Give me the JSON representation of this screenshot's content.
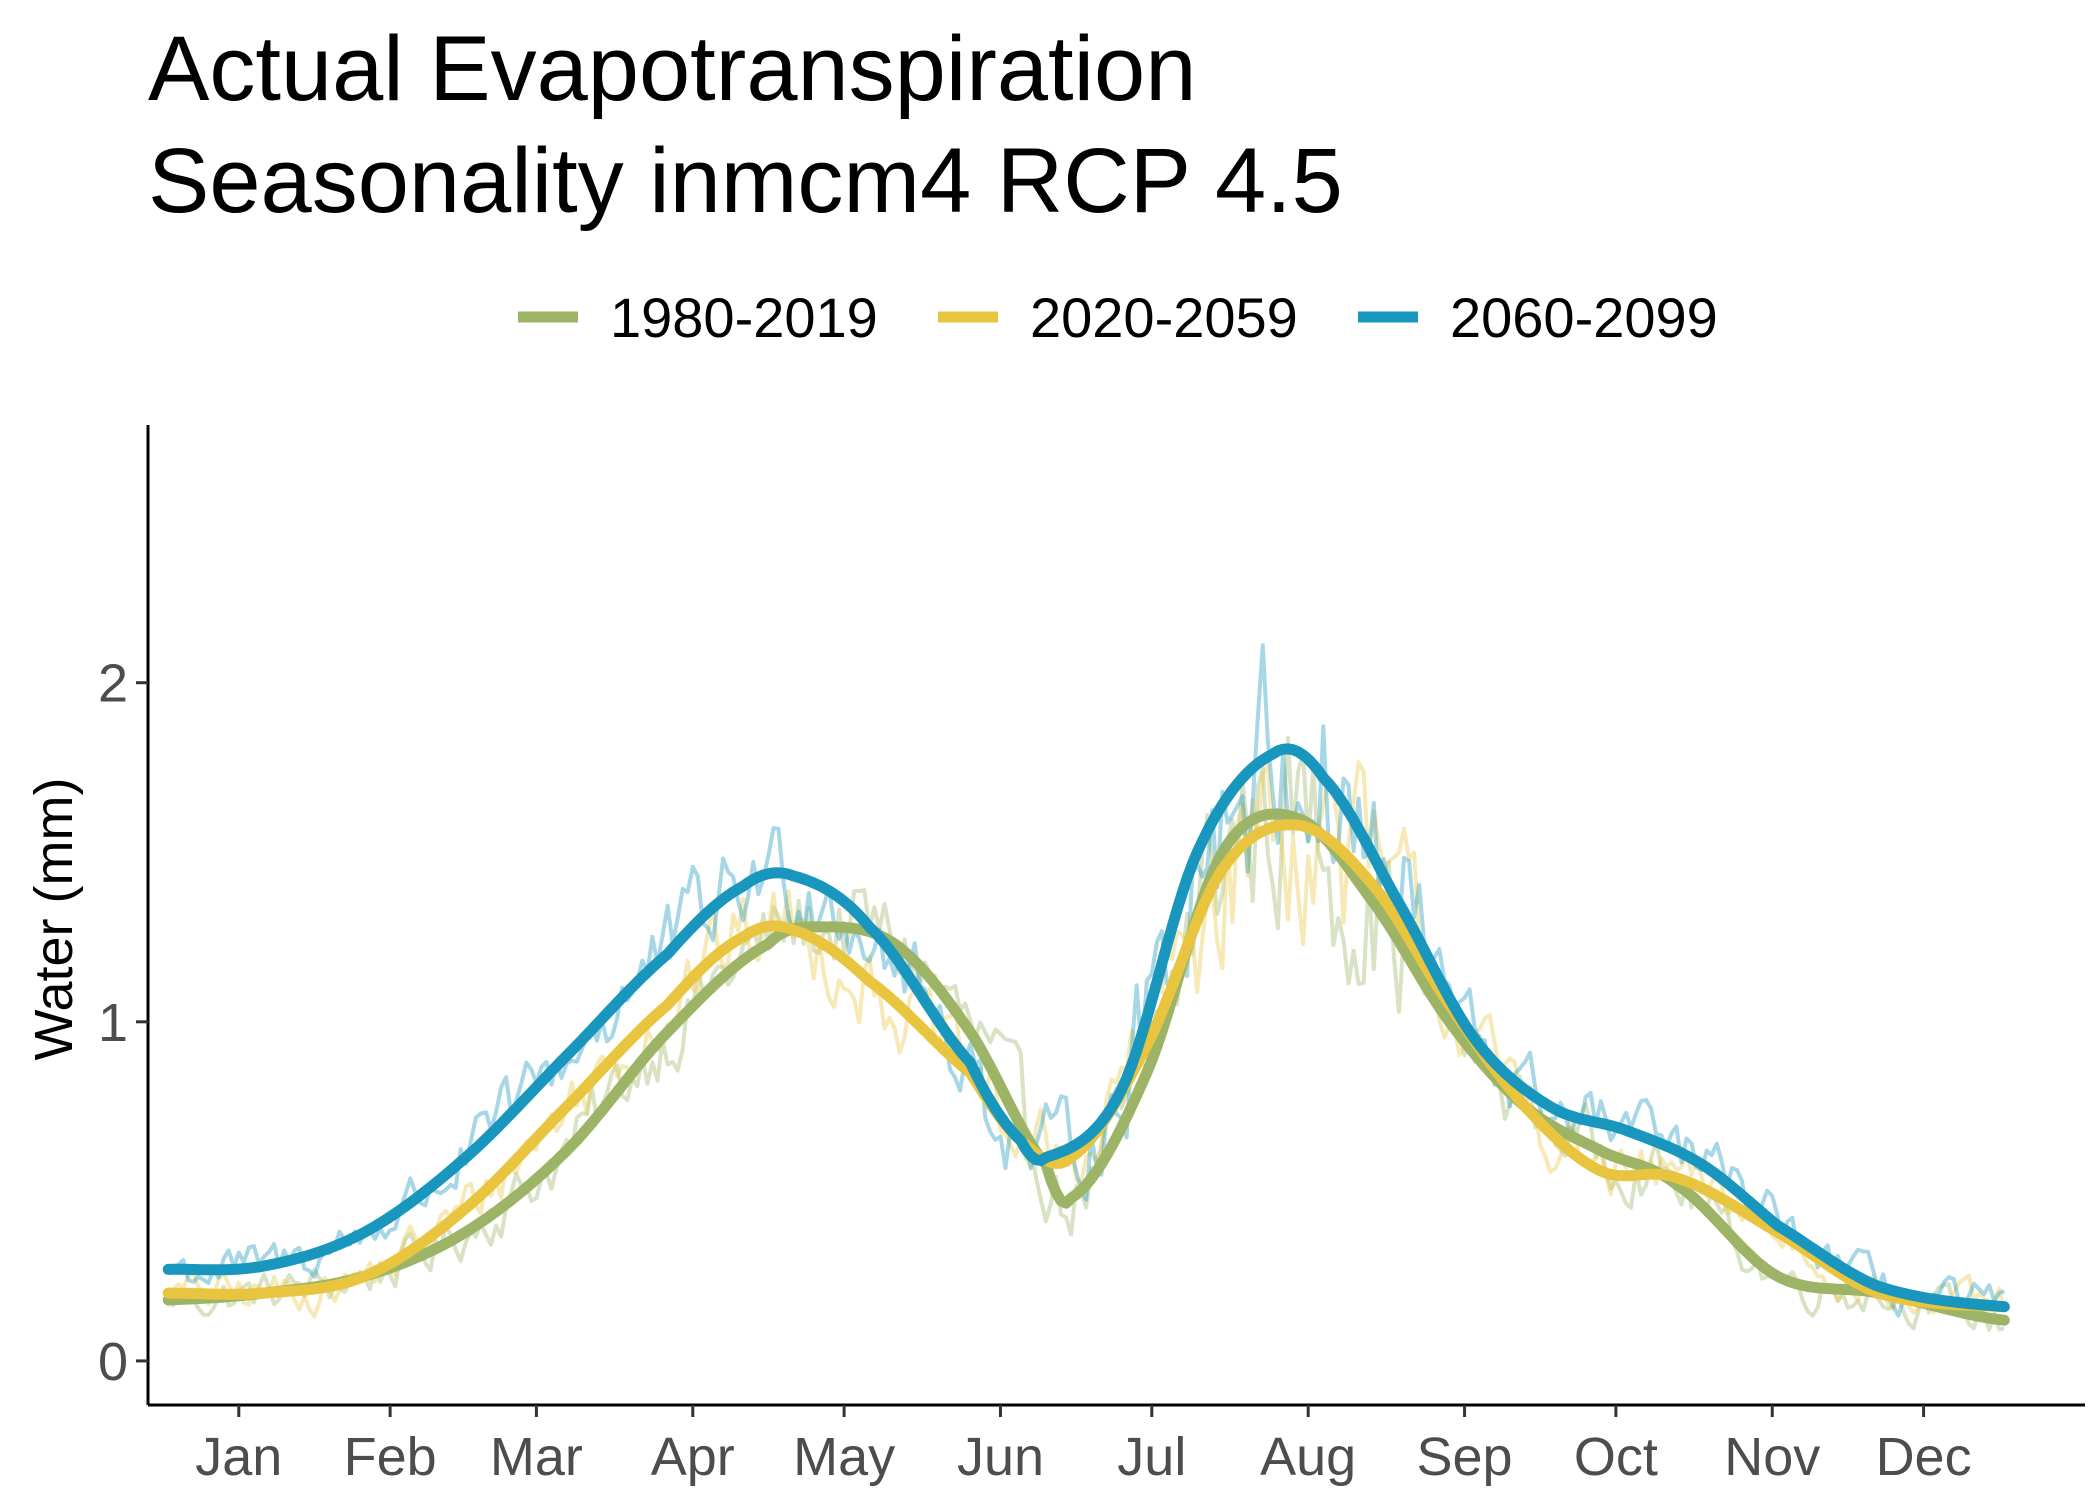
{
  "chart_data": {
    "type": "line",
    "title_lines": [
      "Actual Evapotranspiration",
      "Seasonality inmcm4 RCP 4.5"
    ],
    "xlabel": "",
    "ylabel": "Water (mm)",
    "x_ticks": [
      {
        "label": "Jan",
        "doy": 15
      },
      {
        "label": "Feb",
        "doy": 45
      },
      {
        "label": "Mar",
        "doy": 74
      },
      {
        "label": "Apr",
        "doy": 105
      },
      {
        "label": "May",
        "doy": 135
      },
      {
        "label": "Jun",
        "doy": 166
      },
      {
        "label": "Jul",
        "doy": 196
      },
      {
        "label": "Aug",
        "doy": 227
      },
      {
        "label": "Sep",
        "doy": 258
      },
      {
        "label": "Oct",
        "doy": 288
      },
      {
        "label": "Nov",
        "doy": 319
      },
      {
        "label": "Dec",
        "doy": 349
      }
    ],
    "y_ticks": [
      0,
      1,
      2
    ],
    "xlim": [
      -3,
      381
    ],
    "ylim": [
      -0.13,
      2.76
    ],
    "grid": false,
    "legend_position": "top",
    "series": [
      {
        "name": "1980-2019",
        "color": "#9db466",
        "x": [
          1,
          20,
          40,
          60,
          80,
          100,
          120,
          130,
          145,
          160,
          175,
          180,
          195,
          210,
          225,
          240,
          255,
          270,
          285,
          300,
          320,
          340,
          365
        ],
        "y": [
          0.18,
          0.2,
          0.25,
          0.38,
          0.62,
          0.97,
          1.23,
          1.28,
          1.23,
          0.97,
          0.58,
          0.48,
          0.85,
          1.5,
          1.6,
          1.35,
          1.0,
          0.75,
          0.62,
          0.52,
          0.25,
          0.2,
          0.12
        ]
      },
      {
        "name": "2020-2059",
        "color": "#e9c53f",
        "x": [
          1,
          20,
          40,
          60,
          80,
          100,
          115,
          125,
          140,
          160,
          170,
          180,
          195,
          210,
          225,
          240,
          255,
          270,
          285,
          300,
          320,
          340,
          365
        ],
        "y": [
          0.2,
          0.2,
          0.25,
          0.45,
          0.75,
          1.05,
          1.25,
          1.27,
          1.12,
          0.85,
          0.65,
          0.6,
          0.93,
          1.45,
          1.58,
          1.4,
          1.05,
          0.75,
          0.56,
          0.54,
          0.38,
          0.2,
          0.16
        ]
      },
      {
        "name": "2060-2099",
        "color": "#1896bd",
        "x": [
          1,
          20,
          40,
          60,
          80,
          100,
          115,
          125,
          140,
          160,
          170,
          175,
          190,
          205,
          220,
          230,
          245,
          260,
          275,
          290,
          305,
          320,
          340,
          365
        ],
        "y": [
          0.27,
          0.28,
          0.38,
          0.6,
          0.9,
          1.2,
          1.4,
          1.43,
          1.28,
          0.88,
          0.65,
          0.6,
          0.8,
          1.5,
          1.79,
          1.72,
          1.35,
          0.95,
          0.75,
          0.68,
          0.58,
          0.4,
          0.22,
          0.16
        ]
      }
    ]
  }
}
